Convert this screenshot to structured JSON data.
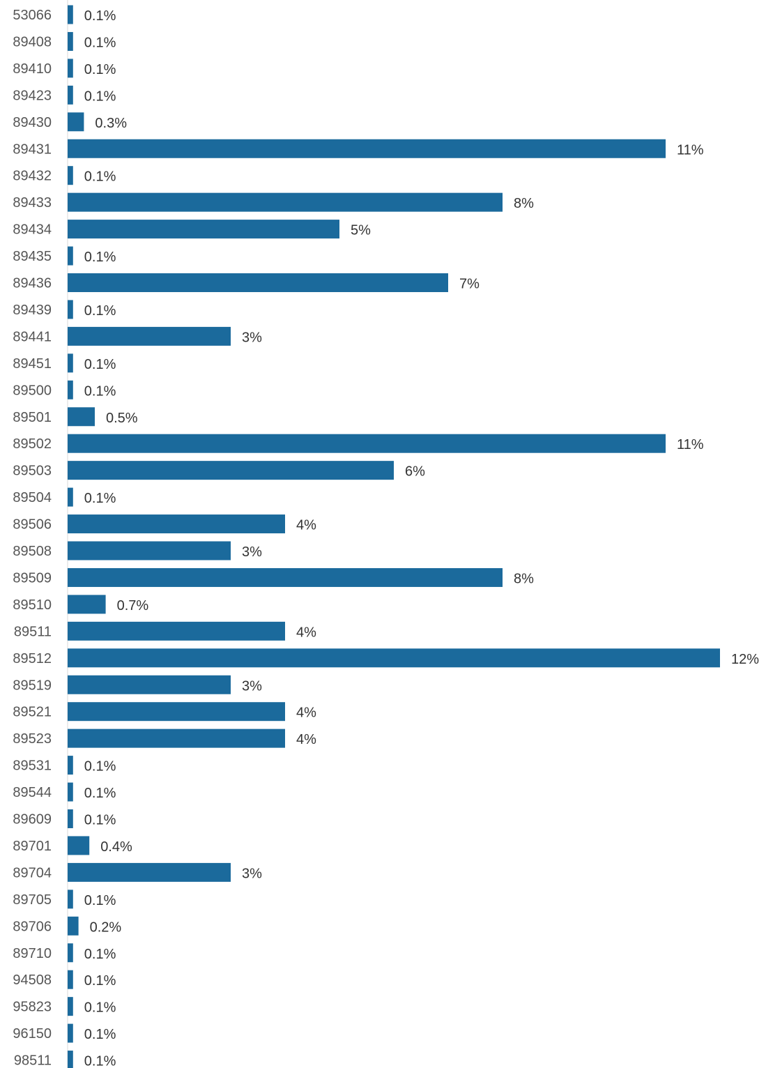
{
  "chart_data": {
    "type": "bar",
    "orientation": "horizontal",
    "bar_color": "#1b6a9c",
    "categories": [
      "53066",
      "89408",
      "89410",
      "89423",
      "89430",
      "89431",
      "89432",
      "89433",
      "89434",
      "89435",
      "89436",
      "89439",
      "89441",
      "89451",
      "89500",
      "89501",
      "89502",
      "89503",
      "89504",
      "89506",
      "89508",
      "89509",
      "89510",
      "89511",
      "89512",
      "89519",
      "89521",
      "89523",
      "89531",
      "89544",
      "89609",
      "89701",
      "89704",
      "89705",
      "89706",
      "89710",
      "94508",
      "95823",
      "96150",
      "98511"
    ],
    "values": [
      0.1,
      0.1,
      0.1,
      0.1,
      0.3,
      11,
      0.1,
      8,
      5,
      0.1,
      7,
      0.1,
      3,
      0.1,
      0.1,
      0.5,
      11,
      6,
      0.1,
      4,
      3,
      8,
      0.7,
      4,
      12,
      3,
      4,
      4,
      0.1,
      0.1,
      0.1,
      0.4,
      3,
      0.1,
      0.2,
      0.1,
      0.1,
      0.1,
      0.1,
      0.1
    ],
    "value_labels": [
      "0.1%",
      "0.1%",
      "0.1%",
      "0.1%",
      "0.3%",
      "11%",
      "0.1%",
      "8%",
      "5%",
      "0.1%",
      "7%",
      "0.1%",
      "3%",
      "0.1%",
      "0.1%",
      "0.5%",
      "11%",
      "6%",
      "0.1%",
      "4%",
      "3%",
      "8%",
      "0.7%",
      "4%",
      "12%",
      "3%",
      "4%",
      "4%",
      "0.1%",
      "0.1%",
      "0.1%",
      "0.4%",
      "3%",
      "0.1%",
      "0.2%",
      "0.1%",
      "0.1%",
      "0.1%",
      "0.1%",
      "0.1%"
    ],
    "unit": "%",
    "xlim": [
      0,
      12
    ],
    "grid": false,
    "legend": "none"
  }
}
